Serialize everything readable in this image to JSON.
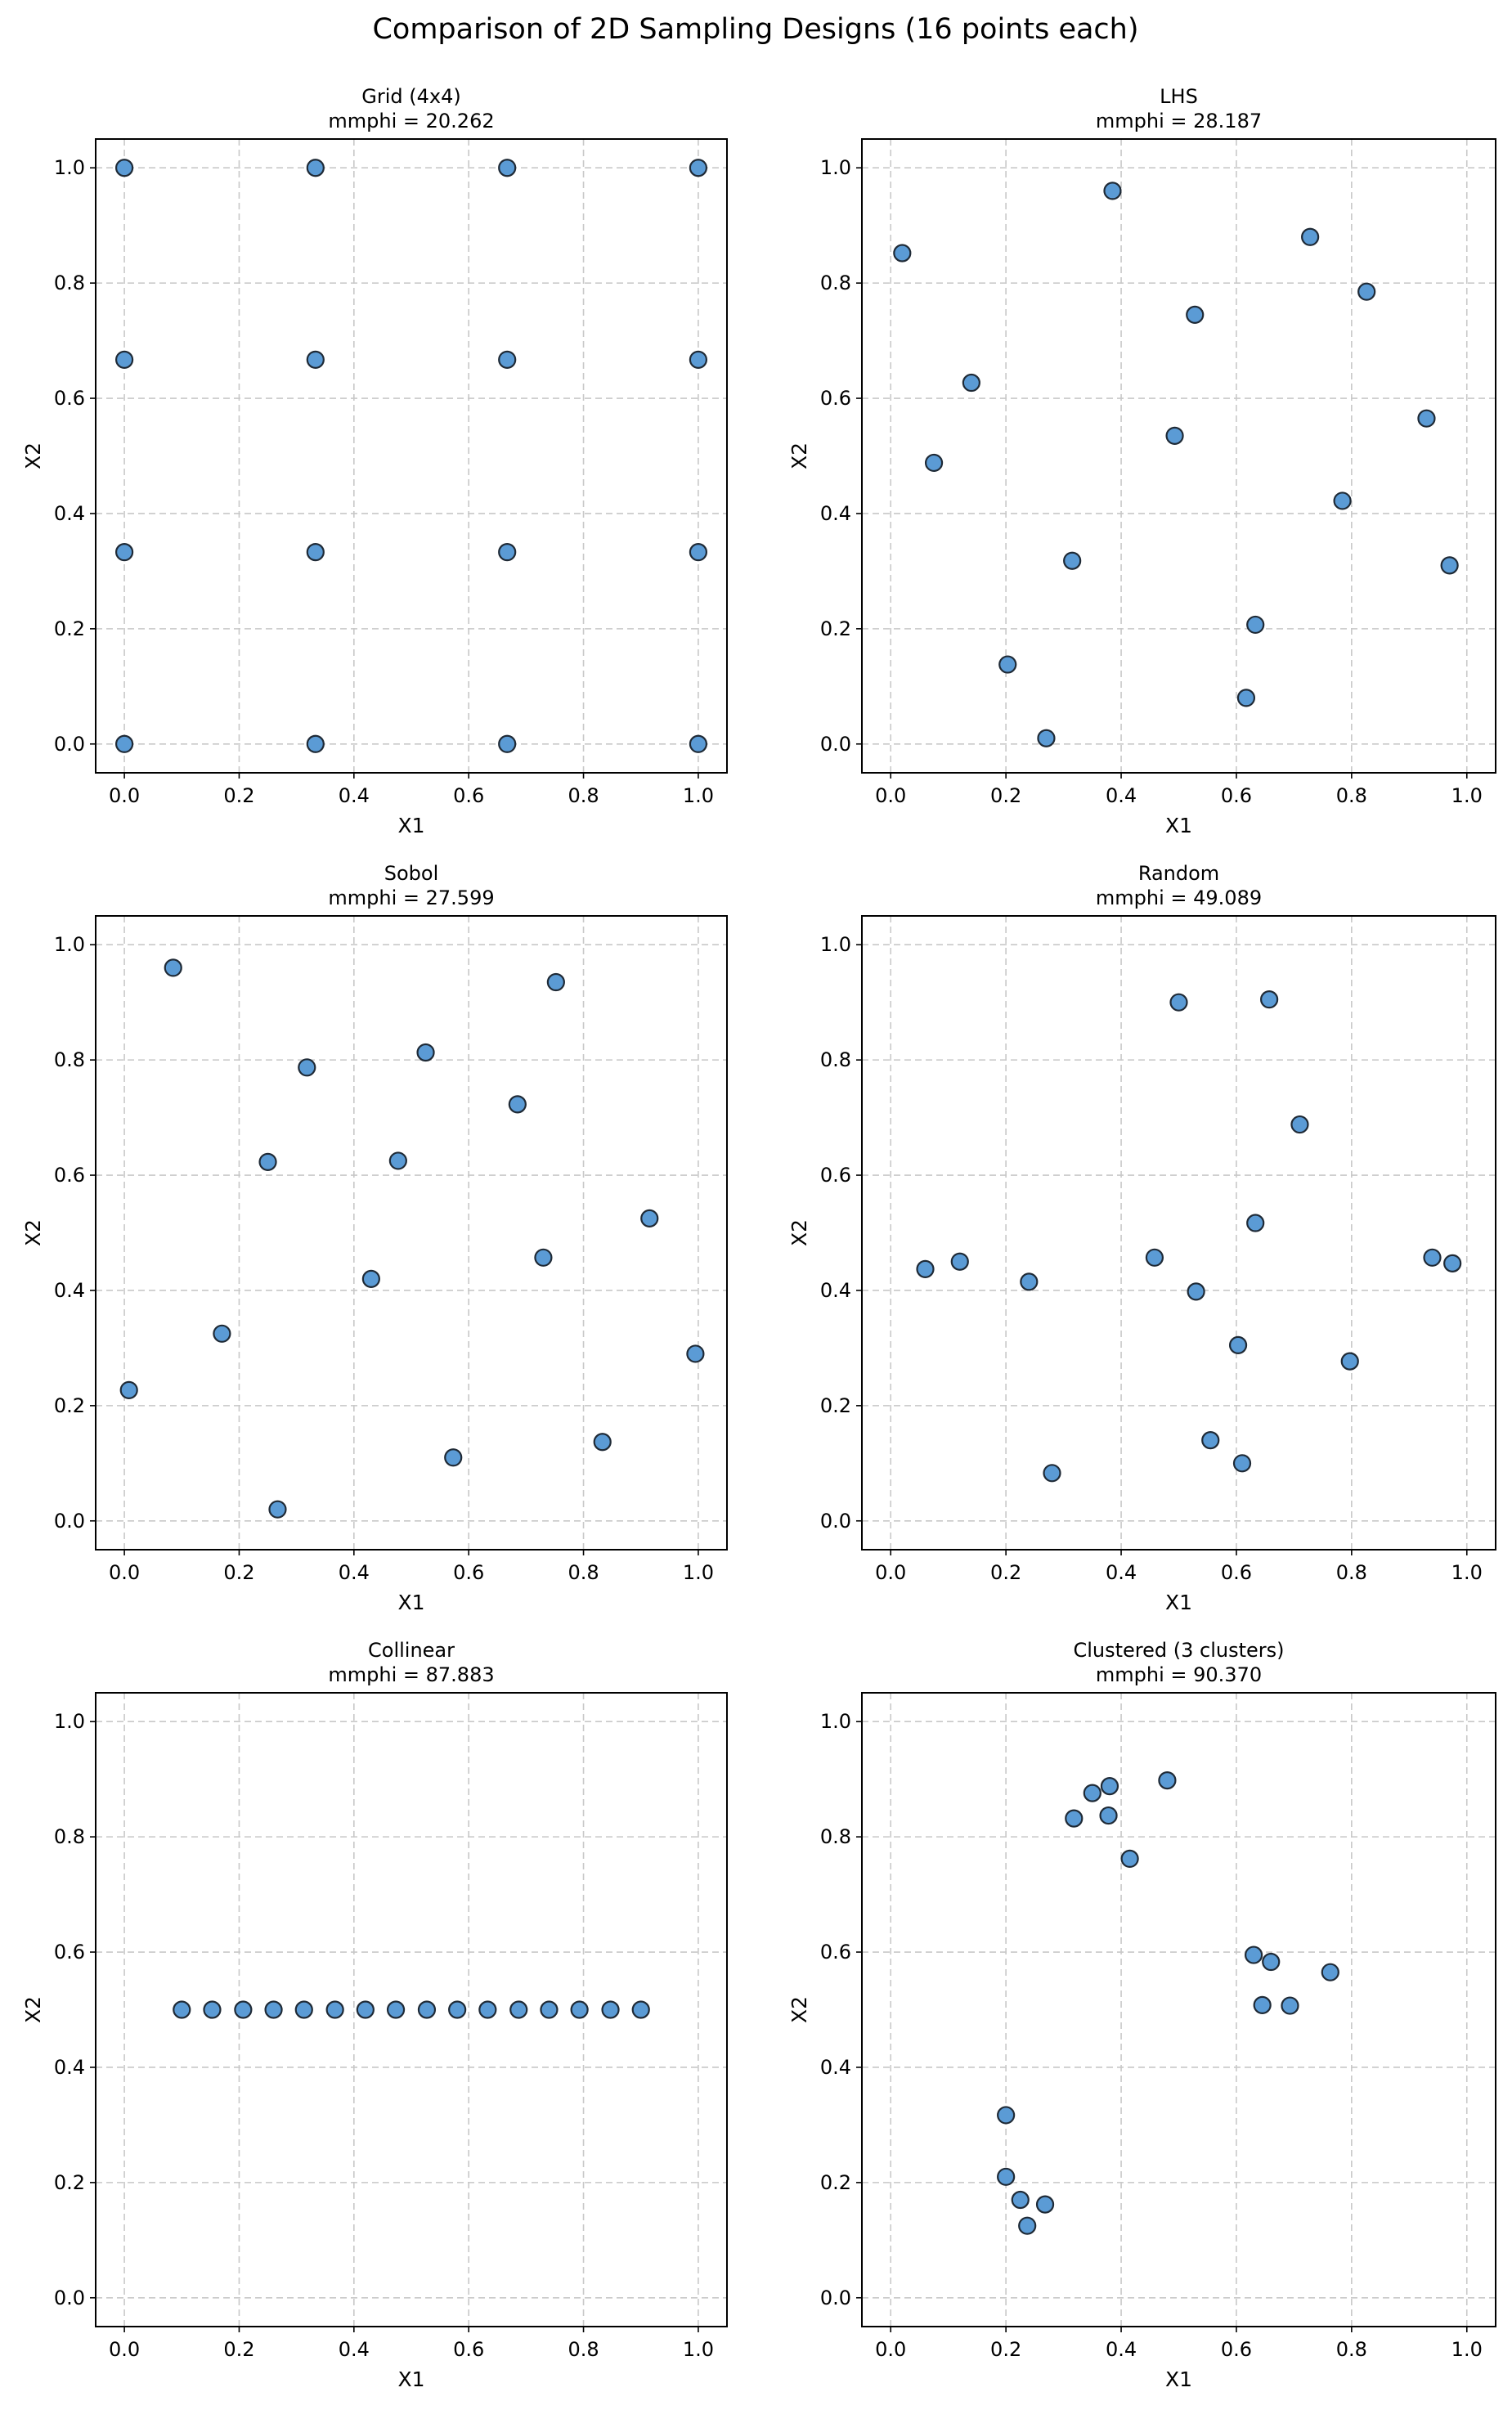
{
  "figure": {
    "title": "Comparison of 2D Sampling Designs (16 points each)",
    "point_color": "#5b9bd5",
    "point_edge_color": "#1f2a36",
    "grid_color": "#c8c8c8"
  },
  "chart_data": [
    {
      "type": "scatter",
      "title": "Grid (4x4)",
      "subtitle": "mmphi = 20.262",
      "xlabel": "X1",
      "ylabel": "X2",
      "xlim": [
        -0.05,
        1.05
      ],
      "ylim": [
        -0.05,
        1.05
      ],
      "xticks": [
        "0.0",
        "0.2",
        "0.4",
        "0.6",
        "0.8",
        "1.0"
      ],
      "yticks": [
        "0.0",
        "0.2",
        "0.4",
        "0.6",
        "0.8",
        "1.0"
      ],
      "grid": true,
      "points": [
        [
          0,
          1
        ],
        [
          0.333,
          1
        ],
        [
          0.667,
          1
        ],
        [
          1,
          1
        ],
        [
          0,
          0.667
        ],
        [
          0.333,
          0.667
        ],
        [
          0.667,
          0.667
        ],
        [
          1,
          0.667
        ],
        [
          0,
          0.333
        ],
        [
          0.333,
          0.333
        ],
        [
          0.667,
          0.333
        ],
        [
          1,
          0.333
        ],
        [
          0,
          0
        ],
        [
          0.333,
          0
        ],
        [
          0.667,
          0
        ],
        [
          1,
          0
        ]
      ]
    },
    {
      "type": "scatter",
      "title": "LHS",
      "subtitle": "mmphi = 28.187",
      "xlabel": "X1",
      "ylabel": "X2",
      "xlim": [
        -0.05,
        1.05
      ],
      "ylim": [
        -0.05,
        1.05
      ],
      "xticks": [
        "0.0",
        "0.2",
        "0.4",
        "0.6",
        "0.8",
        "1.0"
      ],
      "yticks": [
        "0.0",
        "0.2",
        "0.4",
        "0.6",
        "0.8",
        "1.0"
      ],
      "grid": true,
      "points": [
        [
          0.02,
          0.852
        ],
        [
          0.385,
          0.96
        ],
        [
          0.728,
          0.88
        ],
        [
          0.826,
          0.785
        ],
        [
          0.528,
          0.745
        ],
        [
          0.14,
          0.627
        ],
        [
          0.93,
          0.565
        ],
        [
          0.075,
          0.488
        ],
        [
          0.493,
          0.535
        ],
        [
          0.784,
          0.422
        ],
        [
          0.315,
          0.318
        ],
        [
          0.97,
          0.31
        ],
        [
          0.633,
          0.207
        ],
        [
          0.203,
          0.138
        ],
        [
          0.617,
          0.08
        ],
        [
          0.27,
          0.01
        ]
      ]
    },
    {
      "type": "scatter",
      "title": "Sobol",
      "subtitle": "mmphi = 27.599",
      "xlabel": "X1",
      "ylabel": "X2",
      "xlim": [
        -0.05,
        1.05
      ],
      "ylim": [
        -0.05,
        1.05
      ],
      "xticks": [
        "0.0",
        "0.2",
        "0.4",
        "0.6",
        "0.8",
        "1.0"
      ],
      "yticks": [
        "0.0",
        "0.2",
        "0.4",
        "0.6",
        "0.8",
        "1.0"
      ],
      "grid": true,
      "points": [
        [
          0.085,
          0.96
        ],
        [
          0.752,
          0.935
        ],
        [
          0.525,
          0.813
        ],
        [
          0.318,
          0.787
        ],
        [
          0.685,
          0.723
        ],
        [
          0.25,
          0.623
        ],
        [
          0.477,
          0.625
        ],
        [
          0.915,
          0.525
        ],
        [
          0.73,
          0.457
        ],
        [
          0.43,
          0.42
        ],
        [
          0.17,
          0.325
        ],
        [
          0.995,
          0.29
        ],
        [
          0.008,
          0.227
        ],
        [
          0.833,
          0.137
        ],
        [
          0.573,
          0.11
        ],
        [
          0.267,
          0.02
        ]
      ]
    },
    {
      "type": "scatter",
      "title": "Random",
      "subtitle": "mmphi = 49.089",
      "xlabel": "X1",
      "ylabel": "X2",
      "xlim": [
        -0.05,
        1.05
      ],
      "ylim": [
        -0.05,
        1.05
      ],
      "xticks": [
        "0.0",
        "0.2",
        "0.4",
        "0.6",
        "0.8",
        "1.0"
      ],
      "yticks": [
        "0.0",
        "0.2",
        "0.4",
        "0.6",
        "0.8",
        "1.0"
      ],
      "grid": true,
      "points": [
        [
          0.5,
          0.9
        ],
        [
          0.657,
          0.905
        ],
        [
          0.71,
          0.688
        ],
        [
          0.633,
          0.517
        ],
        [
          0.06,
          0.437
        ],
        [
          0.12,
          0.45
        ],
        [
          0.24,
          0.415
        ],
        [
          0.458,
          0.457
        ],
        [
          0.53,
          0.398
        ],
        [
          0.94,
          0.457
        ],
        [
          0.975,
          0.447
        ],
        [
          0.603,
          0.305
        ],
        [
          0.797,
          0.277
        ],
        [
          0.555,
          0.14
        ],
        [
          0.61,
          0.1
        ],
        [
          0.28,
          0.083
        ]
      ]
    },
    {
      "type": "scatter",
      "title": "Collinear",
      "subtitle": "mmphi = 87.883",
      "xlabel": "X1",
      "ylabel": "X2",
      "xlim": [
        -0.05,
        1.05
      ],
      "ylim": [
        -0.05,
        1.05
      ],
      "xticks": [
        "0.0",
        "0.2",
        "0.4",
        "0.6",
        "0.8",
        "1.0"
      ],
      "yticks": [
        "0.0",
        "0.2",
        "0.4",
        "0.6",
        "0.8",
        "1.0"
      ],
      "grid": true,
      "points": [
        [
          0.1,
          0.5
        ],
        [
          0.153,
          0.5
        ],
        [
          0.207,
          0.5
        ],
        [
          0.26,
          0.5
        ],
        [
          0.313,
          0.5
        ],
        [
          0.367,
          0.5
        ],
        [
          0.42,
          0.5
        ],
        [
          0.473,
          0.5
        ],
        [
          0.527,
          0.5
        ],
        [
          0.58,
          0.5
        ],
        [
          0.633,
          0.5
        ],
        [
          0.687,
          0.5
        ],
        [
          0.74,
          0.5
        ],
        [
          0.793,
          0.5
        ],
        [
          0.847,
          0.5
        ],
        [
          0.9,
          0.5
        ]
      ]
    },
    {
      "type": "scatter",
      "title": "Clustered (3 clusters)",
      "subtitle": "mmphi = 90.370",
      "xlabel": "X1",
      "ylabel": "X2",
      "xlim": [
        -0.05,
        1.05
      ],
      "ylim": [
        -0.05,
        1.05
      ],
      "xticks": [
        "0.0",
        "0.2",
        "0.4",
        "0.6",
        "0.8",
        "1.0"
      ],
      "yticks": [
        "0.0",
        "0.2",
        "0.4",
        "0.6",
        "0.8",
        "1.0"
      ],
      "grid": true,
      "points": [
        [
          0.48,
          0.898
        ],
        [
          0.38,
          0.888
        ],
        [
          0.35,
          0.876
        ],
        [
          0.318,
          0.832
        ],
        [
          0.378,
          0.837
        ],
        [
          0.415,
          0.762
        ],
        [
          0.63,
          0.595
        ],
        [
          0.66,
          0.583
        ],
        [
          0.763,
          0.565
        ],
        [
          0.645,
          0.508
        ],
        [
          0.693,
          0.507
        ],
        [
          0.2,
          0.317
        ],
        [
          0.2,
          0.21
        ],
        [
          0.225,
          0.17
        ],
        [
          0.268,
          0.162
        ],
        [
          0.237,
          0.125
        ]
      ]
    }
  ]
}
